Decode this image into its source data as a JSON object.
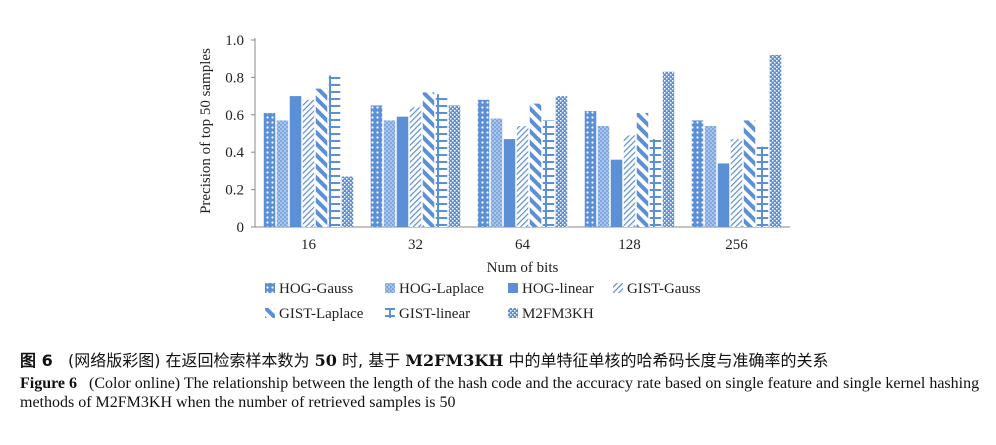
{
  "chart_data": {
    "type": "bar",
    "title": "",
    "xlabel": "Num of bits",
    "ylabel": "Precision of top 50 samples",
    "ylim": [
      0,
      1.0
    ],
    "yticks": [
      "0",
      "0.2",
      "0.4",
      "0.6",
      "0.8",
      "1.0"
    ],
    "categories": [
      "16",
      "32",
      "64",
      "128",
      "256"
    ],
    "legend_position": "bottom",
    "series": [
      {
        "name": "HOG-Gauss",
        "pattern": "dots",
        "values": [
          0.61,
          0.65,
          0.68,
          0.62,
          0.57
        ]
      },
      {
        "name": "HOG-Laplace",
        "pattern": "grid",
        "values": [
          0.57,
          0.57,
          0.58,
          0.54,
          0.54
        ]
      },
      {
        "name": "HOG-linear",
        "pattern": "solid",
        "values": [
          0.7,
          0.59,
          0.47,
          0.36,
          0.34
        ]
      },
      {
        "name": "GIST-Gauss",
        "pattern": "thin-diag",
        "values": [
          0.68,
          0.64,
          0.54,
          0.49,
          0.47
        ]
      },
      {
        "name": "GIST-Laplace",
        "pattern": "wide-diag",
        "values": [
          0.74,
          0.72,
          0.66,
          0.61,
          0.57
        ]
      },
      {
        "name": "GIST-linear",
        "pattern": "ladder",
        "values": [
          0.81,
          0.71,
          0.57,
          0.47,
          0.43
        ]
      },
      {
        "name": "M2FM3KH",
        "pattern": "checker",
        "values": [
          0.27,
          0.65,
          0.7,
          0.83,
          0.92
        ]
      }
    ]
  },
  "colors": {
    "bar": "#5b8fd6",
    "bar_light": "#a9c4ea",
    "axis": "#888888"
  },
  "caption": {
    "cn_fig_num": "图 6",
    "cn_text_1": "(网络版彩图) 在返回检索样本数为",
    "cn_bold_1": "50",
    "cn_text_2": "时, 基于",
    "cn_bold_2": "M2FM3KH",
    "cn_text_3": "中的单特征单核的哈希码长度与准确率的关系",
    "en_label": "Figure 6",
    "en_text": "(Color online) The relationship between the length of the hash code and the accuracy rate based on single feature and single kernel hashing methods of M2FM3KH when the number of retrieved samples is 50"
  }
}
